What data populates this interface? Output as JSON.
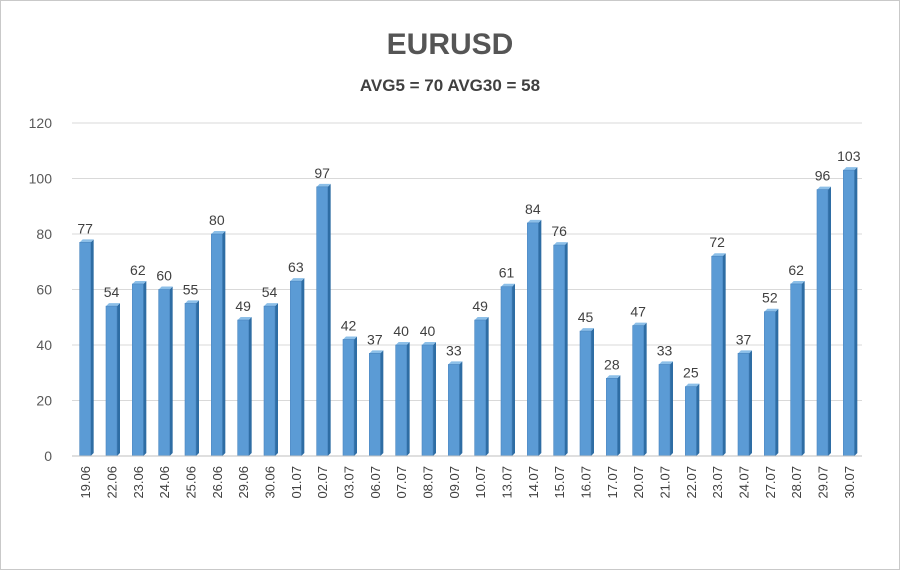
{
  "chart_data": {
    "type": "bar",
    "title": "EURUSD",
    "subtitle": "AVG5 = 70 AVG30 = 58",
    "categories": [
      "19.06",
      "22.06",
      "23.06",
      "24.06",
      "25.06",
      "26.06",
      "29.06",
      "30.06",
      "01.07",
      "02.07",
      "03.07",
      "06.07",
      "07.07",
      "08.07",
      "09.07",
      "10.07",
      "13.07",
      "14.07",
      "15.07",
      "16.07",
      "17.07",
      "20.07",
      "21.07",
      "22.07",
      "23.07",
      "24.07",
      "27.07",
      "28.07",
      "29.07",
      "30.07"
    ],
    "values": [
      77,
      54,
      62,
      60,
      55,
      80,
      49,
      54,
      63,
      97,
      42,
      37,
      40,
      40,
      33,
      49,
      61,
      84,
      76,
      45,
      28,
      47,
      33,
      25,
      72,
      37,
      52,
      62,
      96,
      103
    ],
    "ylim": [
      0,
      120
    ],
    "yticks": [
      0,
      20,
      40,
      60,
      80,
      100,
      120
    ],
    "grid": true,
    "legend": "none",
    "bar_color": "#5b9bd5",
    "bar_side_color": "#2e6da4",
    "grid_color": "#d9d9d9"
  }
}
